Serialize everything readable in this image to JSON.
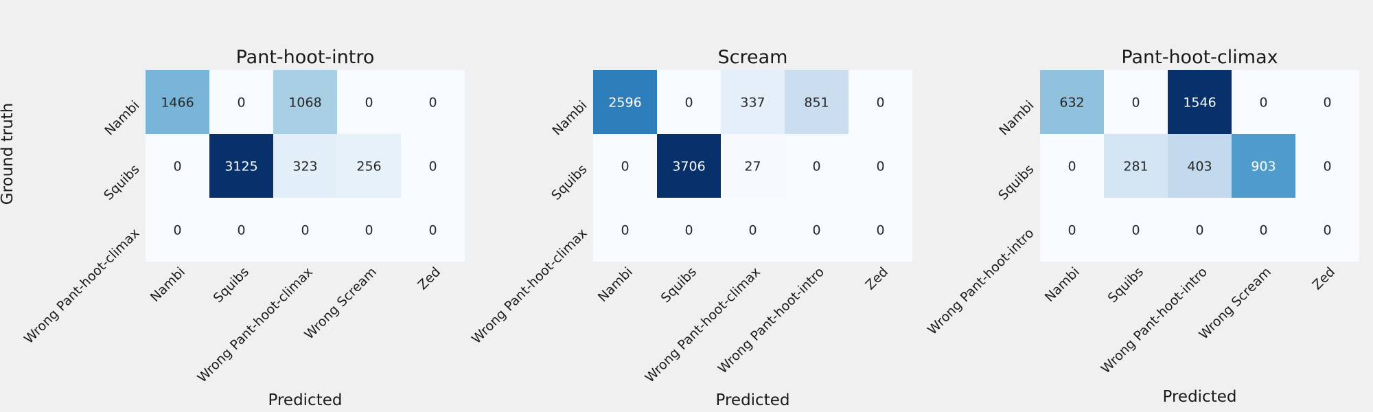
{
  "figure": {
    "ylabel": "Ground truth"
  },
  "chart_data": [
    {
      "type": "heatmap",
      "title": "Pant-hoot-intro",
      "xlabel": "Predicted",
      "ylabel": "Ground truth",
      "rows": [
        "Nambi",
        "Squibs",
        "Wrong Pant-hoot-climax"
      ],
      "columns": [
        "Nambi",
        "Squibs",
        "Wrong Pant-hoot-climax",
        "Wrong Scream",
        "Zed"
      ],
      "values": [
        [
          1466,
          0,
          1068,
          0,
          0
        ],
        [
          0,
          3125,
          323,
          256,
          0
        ],
        [
          0,
          0,
          0,
          0,
          0
        ]
      ],
      "colormap": "Blues",
      "colorbar": false
    },
    {
      "type": "heatmap",
      "title": "Scream",
      "xlabel": "Predicted",
      "ylabel": "",
      "rows": [
        "Nambi",
        "Squibs",
        "Wrong Pant-hoot-climax"
      ],
      "columns": [
        "Nambi",
        "Squibs",
        "Wrong Pant-hoot-climax",
        "Wrong Pant-hoot-intro",
        "Zed"
      ],
      "values": [
        [
          2596,
          0,
          337,
          851,
          0
        ],
        [
          0,
          3706,
          27,
          0,
          0
        ],
        [
          0,
          0,
          0,
          0,
          0
        ]
      ],
      "colormap": "Blues",
      "colorbar": false
    },
    {
      "type": "heatmap",
      "title": "Pant-hoot-climax",
      "xlabel": "Predicted",
      "ylabel": "",
      "rows": [
        "Nambi",
        "Squibs",
        "Wrong Pant-hoot-intro"
      ],
      "columns": [
        "Nambi",
        "Squibs",
        "Wrong Pant-hoot-intro",
        "Wrong Scream",
        "Zed"
      ],
      "values": [
        [
          632,
          0,
          1546,
          0,
          0
        ],
        [
          0,
          281,
          403,
          903,
          0
        ],
        [
          0,
          0,
          0,
          0,
          0
        ]
      ],
      "colormap": "Blues",
      "colorbar": false
    }
  ]
}
